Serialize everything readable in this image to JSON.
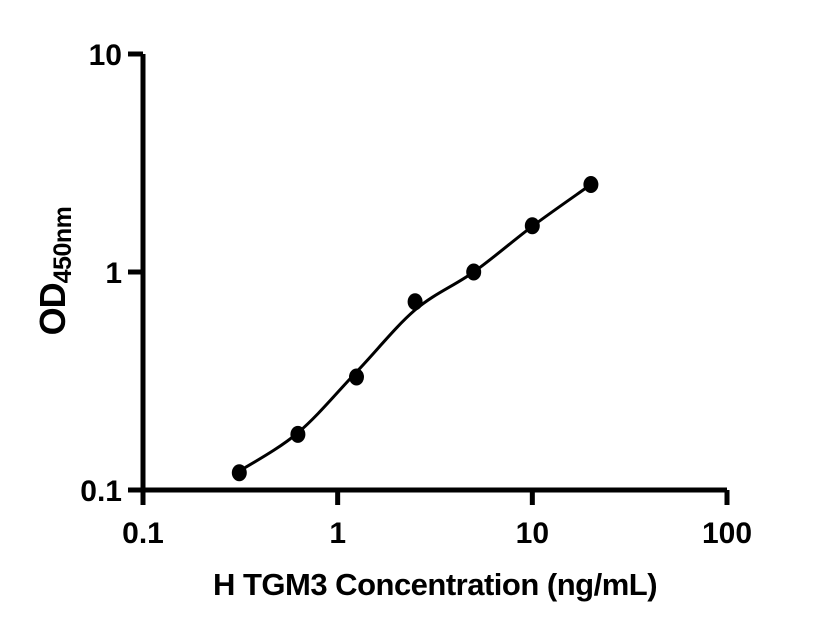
{
  "figure": {
    "background": "#ffffff",
    "foreground": "#000000"
  },
  "chart_data": {
    "type": "scatter",
    "xlabel": "H TGM3 Concentration (ng/mL)",
    "ylabel": "OD",
    "ylabel_subscript": "450nm",
    "xscale": "log",
    "yscale": "log",
    "xlim": [
      0.1,
      100
    ],
    "ylim": [
      0.1,
      10
    ],
    "x_tick_labels": [
      "0.1",
      "1",
      "10",
      "100"
    ],
    "y_tick_labels": [
      "0.1",
      "1",
      "10"
    ],
    "grid": false,
    "legend": false,
    "series": [
      {
        "name": "standards",
        "kind": "scatter",
        "marker": "filled-circle",
        "color": "#000000",
        "x": [
          0.3125,
          0.625,
          1.25,
          2.5,
          5,
          10,
          20
        ],
        "y": [
          0.12,
          0.18,
          0.33,
          0.73,
          1.0,
          1.63,
          2.52
        ]
      },
      {
        "name": "fit-curve",
        "kind": "line",
        "color": "#000000",
        "x": [
          0.3125,
          0.625,
          1.25,
          2.5,
          5,
          10,
          20
        ],
        "y": [
          0.122,
          0.183,
          0.348,
          0.67,
          1.0,
          1.62,
          2.52
        ]
      }
    ]
  }
}
